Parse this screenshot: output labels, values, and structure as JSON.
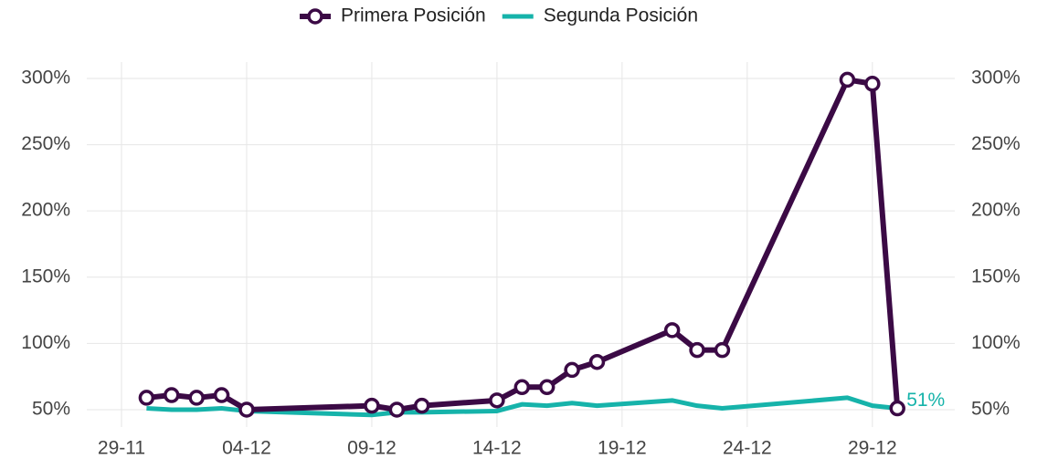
{
  "chart_data": {
    "type": "line",
    "x": [
      "30-11",
      "01-12",
      "02-12",
      "03-12",
      "04-12",
      "09-12",
      "10-12",
      "11-12",
      "14-12",
      "15-12",
      "16-12",
      "17-12",
      "18-12",
      "21-12",
      "22-12",
      "23-12",
      "28-12",
      "29-12",
      "30-12"
    ],
    "series": [
      {
        "name": "Primera Posición",
        "color": "#3b0a45",
        "marker": "circle",
        "values": [
          59,
          61,
          59,
          61,
          50,
          53,
          50,
          53,
          57,
          67,
          67,
          80,
          86,
          110,
          95,
          95,
          299,
          296,
          51
        ]
      },
      {
        "name": "Segunda Posición",
        "color": "#16b3aa",
        "values": [
          51,
          50,
          50,
          51,
          49,
          46,
          48,
          48,
          49,
          54,
          53,
          55,
          53,
          57,
          53,
          51,
          59,
          53,
          51
        ],
        "value_labels": [
          null,
          null,
          null,
          null,
          null,
          null,
          null,
          null,
          null,
          null,
          null,
          null,
          null,
          null,
          null,
          null,
          null,
          null,
          "51%"
        ]
      }
    ],
    "xlim": [
      "28-11",
      "01-01"
    ],
    "xticks": [
      "29-11",
      "04-12",
      "09-12",
      "14-12",
      "19-12",
      "24-12",
      "29-12"
    ],
    "ylim": [
      46,
      303
    ],
    "yticks": [
      {
        "value": 50,
        "label": "50%"
      },
      {
        "value": 100,
        "label": "100%"
      },
      {
        "value": 150,
        "label": "150%"
      },
      {
        "value": 200,
        "label": "200%"
      },
      {
        "value": 250,
        "label": "250%"
      },
      {
        "value": 300,
        "label": "300%"
      }
    ],
    "y2lim": [
      46,
      303
    ],
    "y2ticks": [
      {
        "value": 50,
        "label": "50%"
      },
      {
        "value": 100,
        "label": "100%"
      },
      {
        "value": 150,
        "label": "150%"
      },
      {
        "value": 200,
        "label": "200%"
      },
      {
        "value": 250,
        "label": "250%"
      },
      {
        "value": 300,
        "label": "300%"
      }
    ],
    "grid": true,
    "legend": "top"
  }
}
